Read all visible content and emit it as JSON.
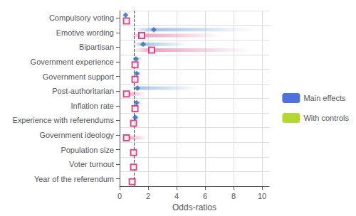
{
  "chart_data": {
    "type": "forest",
    "xlabel": "Odds-ratios",
    "categories": [
      "Compulsory voting",
      "Emotive wording",
      "Bipartisan",
      "Government experience",
      "Government support",
      "Post-authoritarian",
      "Inflation rate",
      "Experience with referendums",
      "Government ideology",
      "Population size",
      "Voter turnout",
      "Year of the referendum"
    ],
    "series": [
      {
        "name": "Main effects",
        "color": "#3A6BBF",
        "ci_color": "#9BBCDF",
        "marker": "diamond",
        "values": [
          0.42,
          2.4,
          1.65,
          1.15,
          1.2,
          1.25,
          1.18,
          1.1,
          null,
          null,
          null,
          null
        ],
        "ci_low": [
          0.32,
          0.9,
          0.95,
          0.85,
          0.95,
          0.85,
          0.95,
          0.85,
          null,
          null,
          null,
          null
        ],
        "ci_high": [
          0.55,
          9.5,
          4.8,
          1.6,
          1.55,
          5.5,
          1.55,
          1.4,
          null,
          null,
          null,
          null
        ]
      },
      {
        "name": "With controls",
        "color": "#CC2266",
        "ci_color": "#E899BB",
        "marker": "open_square",
        "values": [
          0.48,
          1.55,
          2.25,
          1.08,
          1.08,
          0.48,
          1.08,
          0.98,
          0.48,
          0.98,
          0.98,
          0.88
        ],
        "ci_low": [
          0.32,
          0.75,
          0.9,
          0.82,
          0.88,
          0.22,
          0.95,
          0.82,
          0.22,
          0.88,
          0.88,
          0.78
        ],
        "ci_high": [
          0.65,
          7.2,
          9.2,
          1.38,
          1.28,
          1.85,
          1.22,
          1.18,
          1.95,
          1.12,
          1.12,
          1.02
        ]
      }
    ],
    "reference_line": {
      "x": 1.0,
      "line_style": "dashed"
    },
    "xlim": [
      0,
      10.5
    ],
    "xticks": [
      0,
      2,
      4,
      6,
      8,
      10
    ],
    "grid": true,
    "legend": "right"
  }
}
